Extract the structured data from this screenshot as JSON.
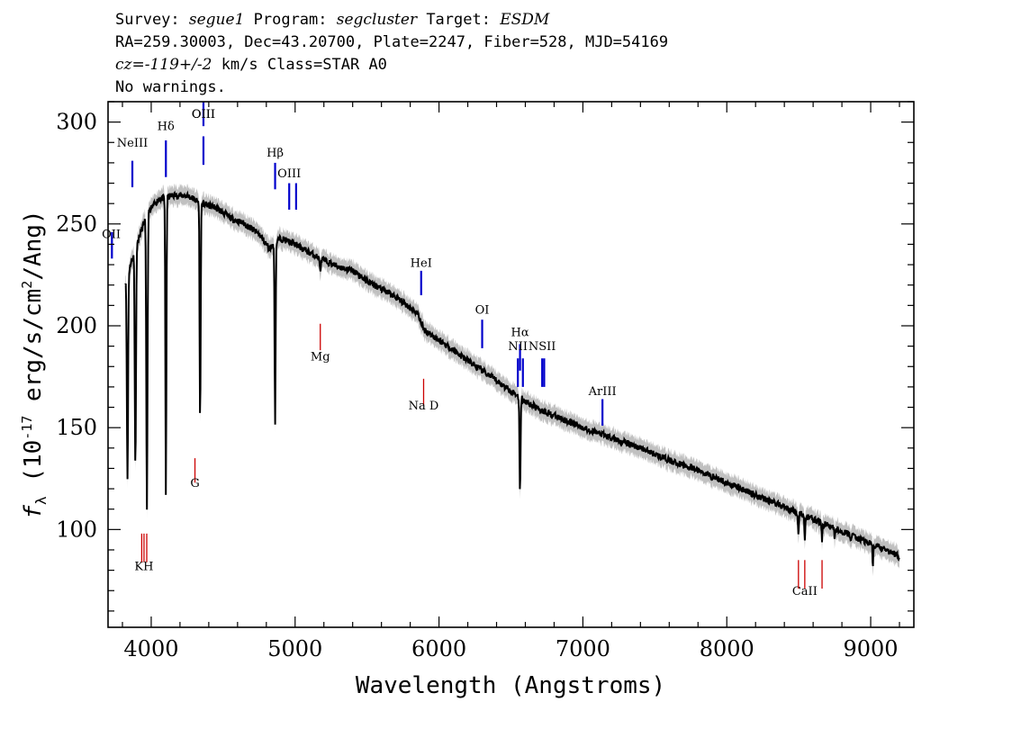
{
  "header": {
    "line1": {
      "survey_label": "Survey: ",
      "survey": "segue1",
      "program_label": " Program: ",
      "program": "segcluster",
      "target_label": " Target: ",
      "target": "ESDM"
    },
    "line2": "RA=259.30003, Dec=43.20700, Plate=2247, Fiber=528, MJD=54169",
    "line3": {
      "cz": "cz=-119+/-2",
      "rest": " km/s Class=STAR A0"
    },
    "line4": "No warnings."
  },
  "chart_data": {
    "type": "line",
    "xlabel": "Wavelength (Angstroms)",
    "ylabel": "f_λ (10^-17 erg/s/cm^2/Ang)",
    "xlim": [
      3700,
      9300
    ],
    "ylim": [
      52,
      310
    ],
    "xticks": [
      4000,
      5000,
      6000,
      7000,
      8000,
      9000
    ],
    "yticks": [
      100,
      150,
      200,
      250,
      300
    ],
    "grid": false,
    "colors": {
      "spectrum": "#000000",
      "error_band": "#c0c0c0",
      "emission": "#0000cc",
      "absorption": "#cc0000"
    },
    "spectrum": {
      "name": "flux",
      "continuum": [
        [
          3820,
          222
        ],
        [
          3900,
          240
        ],
        [
          3970,
          255
        ],
        [
          4050,
          262
        ],
        [
          4150,
          264
        ],
        [
          4250,
          264
        ],
        [
          4350,
          260
        ],
        [
          4450,
          258
        ],
        [
          4550,
          253
        ],
        [
          4650,
          250
        ],
        [
          4750,
          245
        ],
        [
          4820,
          238
        ],
        [
          4900,
          243
        ],
        [
          5000,
          240
        ],
        [
          5100,
          236
        ],
        [
          5200,
          232
        ],
        [
          5300,
          229
        ],
        [
          5400,
          227
        ],
        [
          5500,
          222
        ],
        [
          5600,
          218
        ],
        [
          5700,
          214
        ],
        [
          5800,
          209
        ],
        [
          5850,
          206
        ],
        [
          5900,
          198
        ],
        [
          6000,
          193
        ],
        [
          6100,
          188
        ],
        [
          6200,
          183
        ],
        [
          6300,
          178
        ],
        [
          6400,
          173
        ],
        [
          6500,
          168
        ],
        [
          6600,
          163
        ],
        [
          6700,
          159
        ],
        [
          6800,
          156
        ],
        [
          6900,
          153
        ],
        [
          7000,
          150
        ],
        [
          7200,
          145
        ],
        [
          7400,
          140
        ],
        [
          7600,
          134
        ],
        [
          7800,
          129
        ],
        [
          8000,
          123
        ],
        [
          8200,
          117
        ],
        [
          8400,
          111
        ],
        [
          8600,
          105
        ],
        [
          8800,
          99
        ],
        [
          9000,
          93
        ],
        [
          9200,
          87
        ]
      ],
      "absorption": [
        [
          3835,
          125,
          6
        ],
        [
          3890,
          132,
          6
        ],
        [
          3970,
          110,
          6
        ],
        [
          4102,
          117,
          5
        ],
        [
          4340,
          152,
          5
        ],
        [
          4861,
          152,
          5
        ],
        [
          5175,
          228,
          7
        ],
        [
          5893,
          198,
          4
        ],
        [
          6563,
          117,
          5
        ],
        [
          8498,
          97,
          4
        ],
        [
          8542,
          94,
          4
        ],
        [
          8662,
          93,
          4
        ],
        [
          8750,
          95,
          4
        ],
        [
          8863,
          95,
          4
        ],
        [
          9015,
          82,
          4
        ]
      ],
      "error_halfwidth": 4
    },
    "line_markers": {
      "emission": [
        {
          "label": "OII",
          "x": 3727,
          "label_y": 243,
          "y0": 233,
          "y1": 246
        },
        {
          "label": "NeIII",
          "x": 3869,
          "label_y": 288,
          "y0": 268,
          "y1": 281
        },
        {
          "label": "Hδ",
          "x": 4102,
          "label_y": 296,
          "y0": 273,
          "y1": 291
        },
        {
          "label": "OIII",
          "x": 4363,
          "label_y": 302,
          "y0": 279,
          "y1": 293
        },
        {
          "label": "OIII",
          "x": 4363,
          "label_y": 302,
          "y0": 298,
          "y1": 310
        },
        {
          "label": "Hβ",
          "x": 4861,
          "label_y": 283,
          "y0": 267,
          "y1": 280
        },
        {
          "label": "OIII",
          "x": 4959,
          "label_y": 273,
          "y0": 257,
          "y1": 270
        },
        {
          "label": "",
          "x": 5007,
          "label_y": 0,
          "y0": 257,
          "y1": 270
        },
        {
          "label": "HeI",
          "x": 5876,
          "label_y": 229,
          "y0": 215,
          "y1": 227
        },
        {
          "label": "OI",
          "x": 6300,
          "label_y": 206,
          "y0": 189,
          "y1": 203
        },
        {
          "label": "Hα",
          "x": 6563,
          "label_y": 195,
          "y0": 178,
          "y1": 191
        },
        {
          "label": "NII",
          "x": 6548,
          "label_y": 188,
          "y0": 170,
          "y1": 184
        },
        {
          "label": "",
          "x": 6583,
          "label_y": 0,
          "y0": 170,
          "y1": 184
        },
        {
          "label": "NSII",
          "x": 6717,
          "label_y": 188,
          "y0": 170,
          "y1": 184
        },
        {
          "label": "",
          "x": 6731,
          "label_y": 0,
          "y0": 170,
          "y1": 184
        },
        {
          "label": "ArIII",
          "x": 7136,
          "label_y": 166,
          "y0": 151,
          "y1": 164
        }
      ],
      "absorption": [
        {
          "label": "KH",
          "x": 3950,
          "label_y": 80,
          "y0": 84,
          "y1": 98
        },
        {
          "label": "",
          "x": 3934,
          "label_y": 0,
          "y0": 84,
          "y1": 98
        },
        {
          "label": "",
          "x": 3969,
          "label_y": 0,
          "y0": 84,
          "y1": 98
        },
        {
          "label": "G",
          "x": 4304,
          "label_y": 121,
          "y0": 123,
          "y1": 135
        },
        {
          "label": "Mg",
          "x": 5175,
          "label_y": 183,
          "y0": 188,
          "y1": 201
        },
        {
          "label": "Na D",
          "x": 5893,
          "label_y": 159,
          "y0": 161,
          "y1": 174
        },
        {
          "label": "CaII",
          "x": 8542,
          "label_y": 68,
          "y0": 71,
          "y1": 85
        },
        {
          "label": "",
          "x": 8498,
          "label_y": 0,
          "y0": 71,
          "y1": 85
        },
        {
          "label": "",
          "x": 8662,
          "label_y": 0,
          "y0": 71,
          "y1": 85
        }
      ]
    }
  }
}
